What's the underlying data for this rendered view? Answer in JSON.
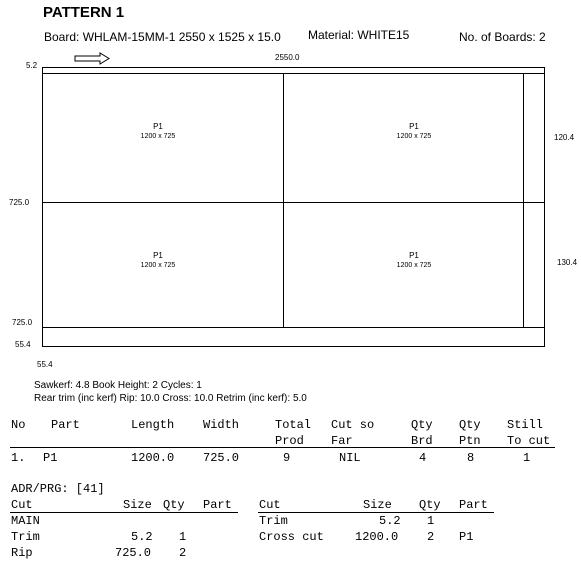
{
  "header": {
    "title": "PATTERN 1",
    "board": "Board: WHLAM-15MM-1  2550 x 1525 x 15.0",
    "material": "Material: WHITE15",
    "boards_count": "No. of Boards: 2"
  },
  "diagram": {
    "top_dim": "2550.0",
    "left_top_mark": "5.2",
    "left_mid_mark": "725.0",
    "left_bot_mark": "725.0",
    "left_bottom_mark": "55.4",
    "bottom_mark": "55.4",
    "right_top_mark": "120.4",
    "right_bot_mark": "130.4",
    "pieces": [
      {
        "name": "P1",
        "size": "1200 x 725"
      },
      {
        "name": "P1",
        "size": "1200 x 725"
      },
      {
        "name": "P1",
        "size": "1200 x 725"
      },
      {
        "name": "P1",
        "size": "1200 x 725"
      }
    ]
  },
  "settings": {
    "line1": "Sawkerf: 4.8  Book Height: 2  Cycles: 1",
    "line2": "Rear trim (inc kerf) Rip: 10.0  Cross: 10.0  Retrim (inc kerf): 5.0"
  },
  "parts_table": {
    "headers": {
      "no": "No",
      "part": "Part",
      "length": "Length",
      "width": "Width",
      "total": "Total",
      "prod": "Prod",
      "cut": "Cut so",
      "far": "Far",
      "qty1": "Qty",
      "brd": "Brd",
      "qty2": "Qty",
      "ptn": "Ptn",
      "still": "Still",
      "tocut": "To cut"
    },
    "row": {
      "no": "1.",
      "part": "P1",
      "length": "1200.0",
      "width": "725.0",
      "total": "9",
      "cut": "NIL",
      "brd": "4",
      "ptn": "8",
      "still": "1"
    }
  },
  "adr": {
    "label": "ADR/PRG: [41]",
    "left_headers": {
      "cut": "Cut",
      "size": "Size",
      "qty": "Qty",
      "part": "Part"
    },
    "right_headers": {
      "cut": "Cut",
      "size": "Size",
      "qty": "Qty",
      "part": "Part"
    },
    "left_rows": [
      {
        "cut": "MAIN",
        "size": "",
        "qty": "",
        "part": ""
      },
      {
        "cut": "Trim",
        "size": "5.2",
        "qty": "1",
        "part": ""
      },
      {
        "cut": "Rip",
        "size": "725.0",
        "qty": "2",
        "part": ""
      }
    ],
    "right_rows": [
      {
        "cut": "Trim",
        "size": "5.2",
        "qty": "1",
        "part": ""
      },
      {
        "cut": "Cross cut",
        "size": "1200.0",
        "qty": "2",
        "part": "P1"
      }
    ]
  }
}
